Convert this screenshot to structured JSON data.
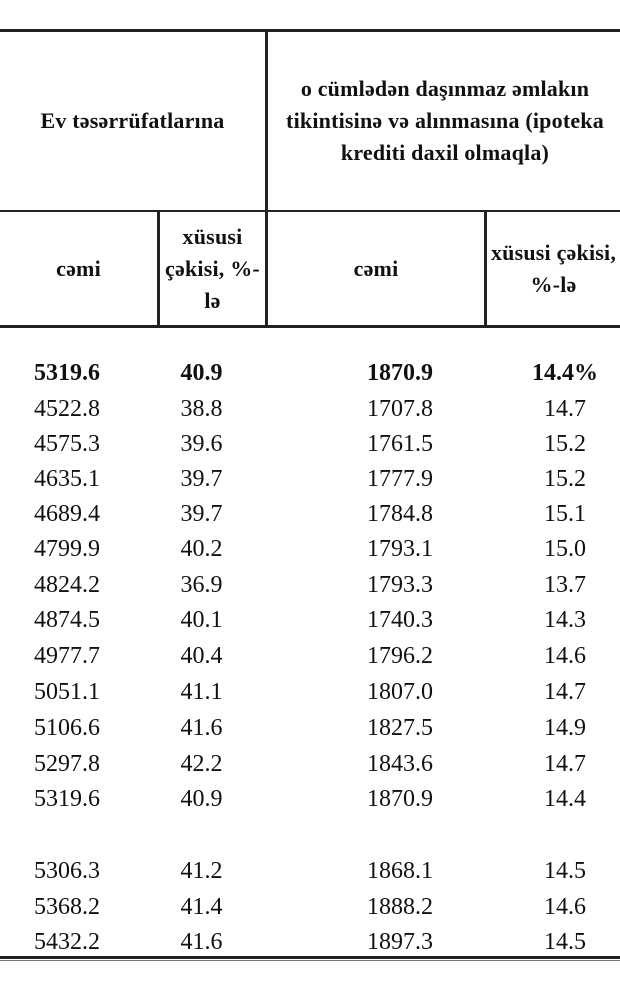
{
  "header": {
    "group1": "Ev təsərrüfatlarına",
    "group2": "o cümlədən daşınmaz əmlakın tikintisinə və alınmasına (ipoteka krediti daxil olmaqla)",
    "col1": "cəmi",
    "col2": "xüsusi çəkisi, %-lə",
    "col3": "cəmi",
    "col4": "xüsusi çəkisi, %-lə"
  },
  "rows": [
    [
      "5319.6",
      "40.9",
      "1870.9",
      "14.4%"
    ],
    [
      "4522.8",
      "38.8",
      "1707.8",
      "14.7"
    ],
    [
      "4575.3",
      "39.6",
      "1761.5",
      "15.2"
    ],
    [
      "4635.1",
      "39.7",
      "1777.9",
      "15.2"
    ],
    [
      "4689.4",
      "39.7",
      "1784.8",
      "15.1"
    ],
    [
      "4799.9",
      "40.2",
      "1793.1",
      "15.0"
    ],
    [
      "4824.2",
      "36.9",
      "1793.3",
      "13.7"
    ],
    [
      "4874.5",
      "40.1",
      "1740.3",
      "14.3"
    ],
    [
      "4977.7",
      "40.4",
      "1796.2",
      "14.6"
    ],
    [
      "5051.1",
      "41.1",
      "1807.0",
      "14.7"
    ],
    [
      "5106.6",
      "41.6",
      "1827.5",
      "14.9"
    ],
    [
      "5297.8",
      "42.2",
      "1843.6",
      "14.7"
    ],
    [
      "5319.6",
      "40.9",
      "1870.9",
      "14.4"
    ],
    [
      "5306.3",
      "41.2",
      "1868.1",
      "14.5"
    ],
    [
      "5368.2",
      "41.4",
      "1888.2",
      "14.6"
    ],
    [
      "5432.2",
      "41.6",
      "1897.3",
      "14.5"
    ]
  ]
}
